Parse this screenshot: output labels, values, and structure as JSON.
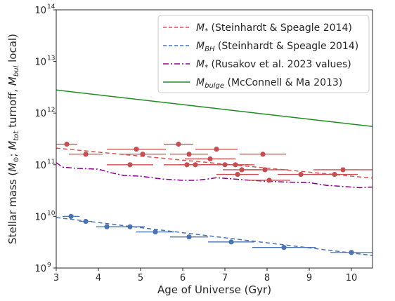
{
  "chart_data": {
    "type": "scatter",
    "xlabel": "Age of Universe (Gyr)",
    "ylabel": "Stellar mass (M⊙; Mtot turnoff, Mbul local)",
    "ylabel_parts": [
      "Stellar mass (",
      "M",
      "⊙",
      "; ",
      "M",
      "tot",
      " turnoff, ",
      "M",
      "bul",
      " local)"
    ],
    "xlim": [
      3.0,
      10.5
    ],
    "ylim": [
      1000000000.0,
      100000000000000.0
    ],
    "yscale": "log",
    "grid": false,
    "legend_position": "top-right",
    "x_ticks": [
      "3",
      "4",
      "5",
      "6",
      "7",
      "8",
      "9",
      "10"
    ],
    "y_ticks": [
      "10",
      "10",
      "10",
      "10",
      "10",
      "10"
    ],
    "y_tick_exponents": [
      "9",
      "10",
      "11",
      "12",
      "13",
      "14"
    ],
    "series": [
      {
        "name": "M* (Steinhardt & Speagle 2014)",
        "legend_symbol": "M",
        "legend_sub": "*",
        "legend_rest": " (Steinhardt & Speagle 2014)",
        "kind": "line",
        "style": "dashed",
        "color": "#d9534f",
        "points": [
          [
            3.0,
            210000000000.0
          ],
          [
            10.5,
            55000000000.0
          ]
        ]
      },
      {
        "name": "MBH (Steinhardt & Speagle 2014)",
        "legend_symbol": "M",
        "legend_sub": "BH",
        "legend_rest": " (Steinhardt & Speagle 2014)",
        "kind": "line",
        "style": "dashed",
        "color": "#4a74b0",
        "points": [
          [
            3.0,
            9500000000.0
          ],
          [
            10.5,
            1750000000.0
          ]
        ]
      },
      {
        "name": "M* (Rusakov et al. 2023 values)",
        "legend_symbol": "M",
        "legend_sub": "*",
        "legend_rest": " (Rusakov et al. 2023 values)",
        "kind": "line",
        "style": "dashdot",
        "color": "#8b008b",
        "points": [
          [
            3.0,
            110000000000.0
          ],
          [
            3.15,
            90000000000.0
          ],
          [
            3.5,
            85000000000.0
          ],
          [
            4.0,
            82000000000.0
          ],
          [
            4.3,
            70000000000.0
          ],
          [
            4.6,
            62000000000.0
          ],
          [
            5.0,
            60000000000.0
          ],
          [
            5.5,
            53000000000.0
          ],
          [
            6.0,
            50000000000.0
          ],
          [
            6.3,
            50000000000.0
          ],
          [
            6.6,
            53000000000.0
          ],
          [
            6.8,
            56000000000.0
          ],
          [
            7.2,
            53000000000.0
          ],
          [
            7.6,
            50000000000.0
          ],
          [
            8.0,
            48000000000.0
          ],
          [
            8.5,
            46000000000.0
          ],
          [
            9.0,
            45000000000.0
          ],
          [
            9.4,
            40000000000.0
          ],
          [
            9.8,
            38000000000.0
          ],
          [
            10.2,
            36000000000.0
          ],
          [
            10.5,
            37000000000.0
          ]
        ]
      },
      {
        "name": "Mbulge (McConnell & Ma 2013)",
        "legend_symbol": "M",
        "legend_sub": "bulge",
        "legend_rest": " (McConnell & Ma 2013)",
        "kind": "line",
        "style": "solid",
        "color": "#228b22",
        "points": [
          [
            3.0,
            2800000000000.0
          ],
          [
            10.5,
            550000000000.0
          ]
        ]
      },
      {
        "kind": "errorbar",
        "color": "#c44e52",
        "points": [
          {
            "x": 3.25,
            "y": 250000000000.0,
            "xerr": 0.25
          },
          {
            "x": 3.7,
            "y": 160000000000.0,
            "xerr": 0.4
          },
          {
            "x": 4.75,
            "y": 100000000000.0,
            "xerr": 0.55
          },
          {
            "x": 4.9,
            "y": 200000000000.0,
            "xerr": 0.7
          },
          {
            "x": 5.05,
            "y": 160000000000.0,
            "xerr": 0.55
          },
          {
            "x": 5.9,
            "y": 250000000000.0,
            "xerr": 0.35
          },
          {
            "x": 6.1,
            "y": 100000000000.0,
            "xerr": 0.55
          },
          {
            "x": 6.15,
            "y": 160000000000.0,
            "xerr": 0.45
          },
          {
            "x": 6.3,
            "y": 100000000000.0,
            "xerr": 0.4
          },
          {
            "x": 6.65,
            "y": 130000000000.0,
            "xerr": 0.6
          },
          {
            "x": 6.8,
            "y": 200000000000.0,
            "xerr": 0.5
          },
          {
            "x": 7.0,
            "y": 100000000000.0,
            "xerr": 0.45
          },
          {
            "x": 7.25,
            "y": 100000000000.0,
            "xerr": 0.45
          },
          {
            "x": 7.3,
            "y": 65000000000.0,
            "xerr": 0.5
          },
          {
            "x": 7.4,
            "y": 80000000000.0,
            "xerr": 0.45
          },
          {
            "x": 7.9,
            "y": 160000000000.0,
            "xerr": 0.55
          },
          {
            "x": 7.95,
            "y": 80000000000.0,
            "xerr": 0.55
          },
          {
            "x": 8.05,
            "y": 50000000000.0,
            "xerr": 0.5
          },
          {
            "x": 8.8,
            "y": 65000000000.0,
            "xerr": 0.55
          },
          {
            "x": 9.6,
            "y": 65000000000.0,
            "xerr": 0.55
          },
          {
            "x": 9.8,
            "y": 80000000000.0,
            "xerr": 0.7
          }
        ]
      },
      {
        "kind": "errorbar",
        "color": "#4c72b0",
        "points": [
          {
            "x": 3.35,
            "y": 10000000000.0,
            "xerr": 0.2
          },
          {
            "x": 3.7,
            "y": 8000000000.0,
            "xerr": 0.15
          },
          {
            "x": 4.2,
            "y": 6300000000.0,
            "xerr": 0.25
          },
          {
            "x": 4.75,
            "y": 6300000000.0,
            "xerr": 0.35
          },
          {
            "x": 5.35,
            "y": 5000000000.0,
            "xerr": 0.45
          },
          {
            "x": 6.15,
            "y": 4000000000.0,
            "xerr": 0.45
          },
          {
            "x": 7.15,
            "y": 3200000000.0,
            "xerr": 0.55
          },
          {
            "x": 8.4,
            "y": 2500000000.0,
            "xerr": 0.75
          },
          {
            "x": 10.0,
            "y": 2000000000.0,
            "xerr": 0.5
          }
        ]
      }
    ]
  }
}
